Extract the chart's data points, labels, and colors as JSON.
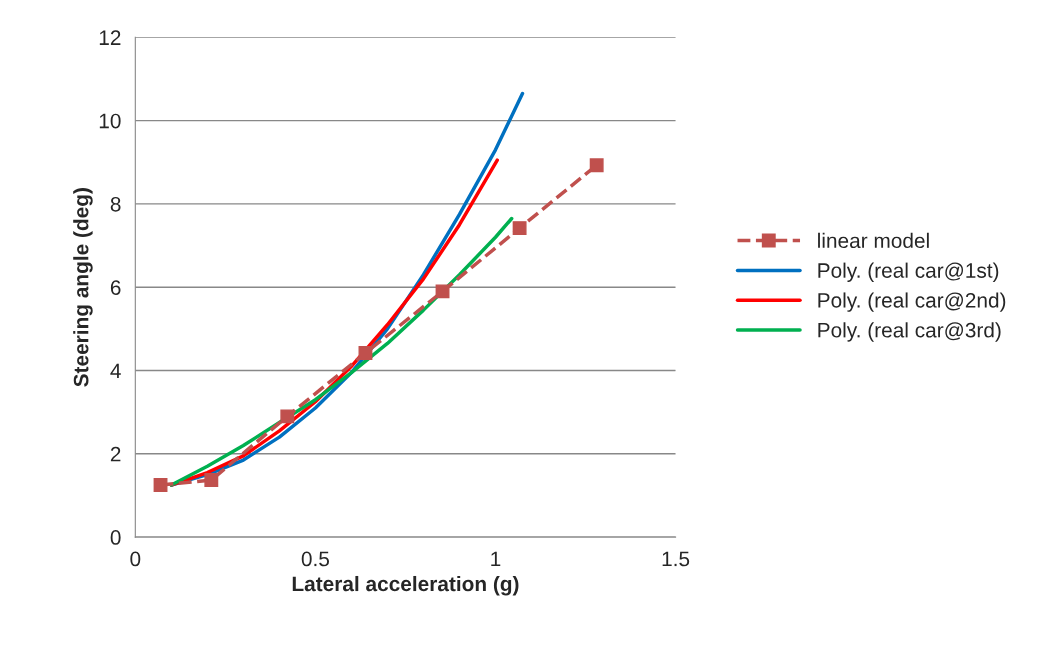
{
  "chart_data": {
    "type": "line",
    "xlabel": "Lateral acceleration (g)",
    "ylabel": "Steering angle (deg)",
    "xlim": [
      0,
      1.5
    ],
    "xticks": [
      0,
      0.5,
      1,
      1.5
    ],
    "ylim": [
      0,
      12
    ],
    "yticks": [
      0,
      2,
      4,
      6,
      8,
      10,
      12
    ],
    "grid": "y",
    "legend": "right",
    "series": [
      {
        "name": "linear model",
        "color": "#c0504d",
        "x": [
          0.07,
          0.211,
          0.422,
          0.639,
          0.853,
          1.067,
          1.281
        ],
        "values": [
          1.25,
          1.37,
          2.9,
          4.42,
          5.9,
          7.42,
          8.93
        ],
        "marker": "square",
        "line_style": "dashed"
      },
      {
        "name": "Poly. (real car@1st)",
        "color": "#0070c0",
        "x": [
          0.1,
          0.2,
          0.3,
          0.4,
          0.5,
          0.6,
          0.7,
          0.8,
          0.9,
          1.0,
          1.075
        ],
        "values": [
          1.25,
          1.5,
          1.85,
          2.4,
          3.1,
          3.95,
          5.0,
          6.3,
          7.75,
          9.3,
          10.65
        ],
        "marker": "none",
        "line_style": "solid"
      },
      {
        "name": "Poly. (real car@2nd)",
        "color": "#ff0000",
        "x": [
          0.1,
          0.2,
          0.3,
          0.4,
          0.5,
          0.6,
          0.7,
          0.8,
          0.9,
          1.005
        ],
        "values": [
          1.25,
          1.55,
          1.95,
          2.55,
          3.25,
          4.1,
          5.1,
          6.2,
          7.5,
          9.05
        ],
        "marker": "none",
        "line_style": "solid"
      },
      {
        "name": "Poly. (real car@3rd)",
        "color": "#00b050",
        "x": [
          0.1,
          0.2,
          0.3,
          0.4,
          0.5,
          0.6,
          0.7,
          0.8,
          0.9,
          1.0,
          1.045
        ],
        "values": [
          1.25,
          1.7,
          2.2,
          2.75,
          3.3,
          3.95,
          4.65,
          5.45,
          6.3,
          7.2,
          7.65
        ],
        "marker": "none",
        "line_style": "solid"
      }
    ]
  }
}
